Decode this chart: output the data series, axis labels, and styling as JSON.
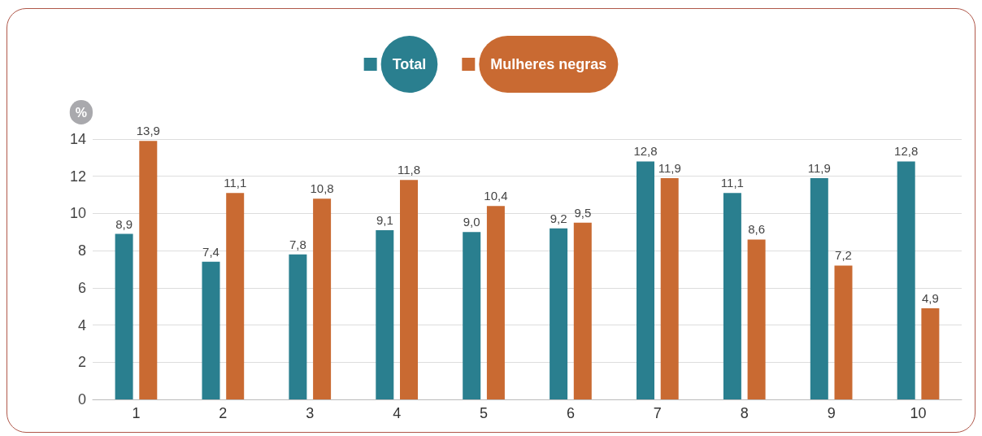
{
  "chart_data": {
    "type": "bar",
    "ylabel": "%",
    "categories": [
      "1",
      "2",
      "3",
      "4",
      "5",
      "6",
      "7",
      "8",
      "9",
      "10"
    ],
    "series": [
      {
        "name": "Total",
        "color": "#2a7f8f",
        "values": [
          8.9,
          7.4,
          7.8,
          9.1,
          9.0,
          9.2,
          12.8,
          11.1,
          11.9,
          12.8
        ],
        "value_labels": [
          "8,9",
          "7,4",
          "7,8",
          "9,1",
          "9,0",
          "9,2",
          "12,8",
          "11,1",
          "11,9",
          "12,8"
        ]
      },
      {
        "name": "Mulheres negras",
        "color": "#c96a32",
        "values": [
          13.9,
          11.1,
          10.8,
          11.8,
          10.4,
          9.5,
          11.9,
          8.6,
          7.2,
          4.9
        ],
        "value_labels": [
          "13,9",
          "11,1",
          "10,8",
          "11,8",
          "10,4",
          "9,5",
          "11,9",
          "8,6",
          "7,2",
          "4,9"
        ]
      }
    ],
    "ylim": [
      0,
      14
    ],
    "yticks": [
      0,
      2,
      4,
      6,
      8,
      10,
      12,
      14
    ],
    "grid": "y",
    "legend": "top"
  }
}
